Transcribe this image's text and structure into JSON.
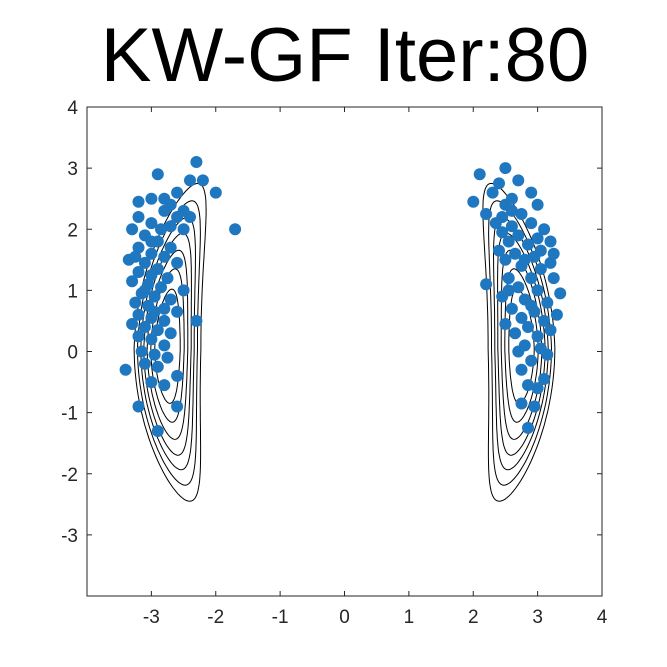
{
  "chart_data": {
    "type": "scatter",
    "title": "KW-GF Iter:80",
    "xlabel": "",
    "ylabel": "",
    "xlim": [
      -4,
      4
    ],
    "ylim": [
      -4,
      4
    ],
    "x_ticks": [
      "-3",
      "-2",
      "-1",
      "0",
      "1",
      "2",
      "3",
      "4"
    ],
    "y_ticks": [
      "-3",
      "-2",
      "-1",
      "0",
      "1",
      "2",
      "3",
      "4"
    ],
    "grid": false,
    "background": "contour",
    "point_color": "#1f77c0",
    "contour_color": "#000000",
    "contour_levels": [
      0.06,
      0.17,
      0.32,
      0.5,
      0.7,
      0.95,
      1.25
    ],
    "clusters": [
      {
        "center_x": -2.7,
        "side": "left",
        "points": [
          [
            -2.3,
            3.1
          ],
          [
            -2.4,
            2.8
          ],
          [
            -2.2,
            2.8
          ],
          [
            -2.0,
            2.6
          ],
          [
            -1.7,
            2.0
          ],
          [
            -2.9,
            2.9
          ],
          [
            -2.6,
            2.6
          ],
          [
            -2.8,
            2.5
          ],
          [
            -3.0,
            2.5
          ],
          [
            -3.2,
            2.45
          ],
          [
            -2.5,
            2.3
          ],
          [
            -2.4,
            2.2
          ],
          [
            -2.6,
            2.2
          ],
          [
            -2.8,
            2.3
          ],
          [
            -3.2,
            2.2
          ],
          [
            -3.0,
            2.1
          ],
          [
            -2.7,
            2.05
          ],
          [
            -2.5,
            2.0
          ],
          [
            -3.3,
            2.0
          ],
          [
            -3.1,
            1.9
          ],
          [
            -2.9,
            1.8
          ],
          [
            -2.7,
            1.7
          ],
          [
            -3.2,
            1.7
          ],
          [
            -3.0,
            1.6
          ],
          [
            -2.8,
            1.55
          ],
          [
            -3.35,
            1.5
          ],
          [
            -3.1,
            1.45
          ],
          [
            -2.6,
            1.45
          ],
          [
            -2.9,
            1.35
          ],
          [
            -3.2,
            1.3
          ],
          [
            -3.0,
            1.25
          ],
          [
            -2.75,
            1.2
          ],
          [
            -3.3,
            1.15
          ],
          [
            -3.05,
            1.1
          ],
          [
            -2.85,
            1.05
          ],
          [
            -2.5,
            1.0
          ],
          [
            -3.15,
            0.95
          ],
          [
            -2.95,
            0.9
          ],
          [
            -2.7,
            0.85
          ],
          [
            -3.25,
            0.8
          ],
          [
            -3.05,
            0.75
          ],
          [
            -2.8,
            0.7
          ],
          [
            -2.6,
            0.65
          ],
          [
            -3.2,
            0.6
          ],
          [
            -3.0,
            0.55
          ],
          [
            -2.8,
            0.5
          ],
          [
            -2.3,
            0.5
          ],
          [
            -3.3,
            0.45
          ],
          [
            -3.1,
            0.4
          ],
          [
            -2.9,
            0.35
          ],
          [
            -2.7,
            0.3
          ],
          [
            -3.2,
            0.25
          ],
          [
            -3.0,
            0.2
          ],
          [
            -2.8,
            0.1
          ],
          [
            -3.15,
            0.0
          ],
          [
            -2.95,
            -0.05
          ],
          [
            -2.75,
            -0.1
          ],
          [
            -3.1,
            -0.2
          ],
          [
            -2.9,
            -0.25
          ],
          [
            -3.4,
            -0.3
          ],
          [
            -2.6,
            -0.4
          ],
          [
            -3.0,
            -0.5
          ],
          [
            -2.8,
            -0.55
          ],
          [
            -3.2,
            -0.9
          ],
          [
            -2.6,
            -0.9
          ],
          [
            -2.9,
            -1.3
          ],
          [
            -3.0,
            1.8
          ],
          [
            -2.85,
            2.0
          ],
          [
            -3.1,
            1.0
          ],
          [
            -2.95,
            0.65
          ],
          [
            -3.25,
            1.55
          ],
          [
            -2.7,
            2.4
          ]
        ]
      },
      {
        "center_x": 2.7,
        "side": "right",
        "points": [
          [
            2.5,
            3.0
          ],
          [
            2.1,
            2.9
          ],
          [
            2.4,
            2.75
          ],
          [
            2.7,
            2.8
          ],
          [
            2.3,
            2.6
          ],
          [
            2.0,
            2.45
          ],
          [
            2.6,
            2.5
          ],
          [
            2.9,
            2.6
          ],
          [
            2.5,
            2.4
          ],
          [
            3.0,
            2.4
          ],
          [
            2.2,
            2.25
          ],
          [
            2.45,
            2.2
          ],
          [
            2.75,
            2.25
          ],
          [
            2.35,
            2.1
          ],
          [
            2.6,
            2.05
          ],
          [
            2.9,
            2.1
          ],
          [
            3.1,
            2.0
          ],
          [
            2.45,
            1.95
          ],
          [
            2.7,
            1.9
          ],
          [
            3.2,
            1.8
          ],
          [
            2.55,
            1.8
          ],
          [
            2.85,
            1.75
          ],
          [
            2.4,
            1.65
          ],
          [
            3.05,
            1.65
          ],
          [
            2.65,
            1.6
          ],
          [
            2.95,
            1.55
          ],
          [
            2.5,
            1.5
          ],
          [
            3.2,
            1.45
          ],
          [
            2.75,
            1.4
          ],
          [
            3.05,
            1.35
          ],
          [
            2.2,
            1.1
          ],
          [
            2.55,
            1.2
          ],
          [
            2.9,
            1.2
          ],
          [
            3.25,
            1.2
          ],
          [
            2.7,
            1.05
          ],
          [
            3.0,
            1.0
          ],
          [
            3.35,
            0.95
          ],
          [
            2.45,
            0.9
          ],
          [
            2.8,
            0.85
          ],
          [
            3.15,
            0.8
          ],
          [
            2.6,
            0.7
          ],
          [
            2.95,
            0.65
          ],
          [
            3.3,
            0.6
          ],
          [
            2.75,
            0.55
          ],
          [
            3.1,
            0.5
          ],
          [
            2.5,
            0.45
          ],
          [
            2.85,
            0.4
          ],
          [
            3.2,
            0.35
          ],
          [
            2.65,
            0.3
          ],
          [
            3.0,
            0.25
          ],
          [
            2.8,
            0.1
          ],
          [
            3.05,
            0.05
          ],
          [
            2.7,
            0.0
          ],
          [
            3.15,
            -0.05
          ],
          [
            2.9,
            -0.15
          ],
          [
            2.75,
            -0.3
          ],
          [
            3.1,
            -0.45
          ],
          [
            2.85,
            -0.55
          ],
          [
            3.0,
            -0.6
          ],
          [
            2.75,
            -0.85
          ],
          [
            2.95,
            -0.9
          ],
          [
            2.85,
            -1.25
          ],
          [
            2.6,
            2.3
          ],
          [
            2.8,
            1.5
          ],
          [
            3.0,
            1.85
          ],
          [
            2.55,
            1.0
          ],
          [
            3.25,
            1.6
          ],
          [
            2.9,
            0.75
          ]
        ]
      }
    ]
  }
}
